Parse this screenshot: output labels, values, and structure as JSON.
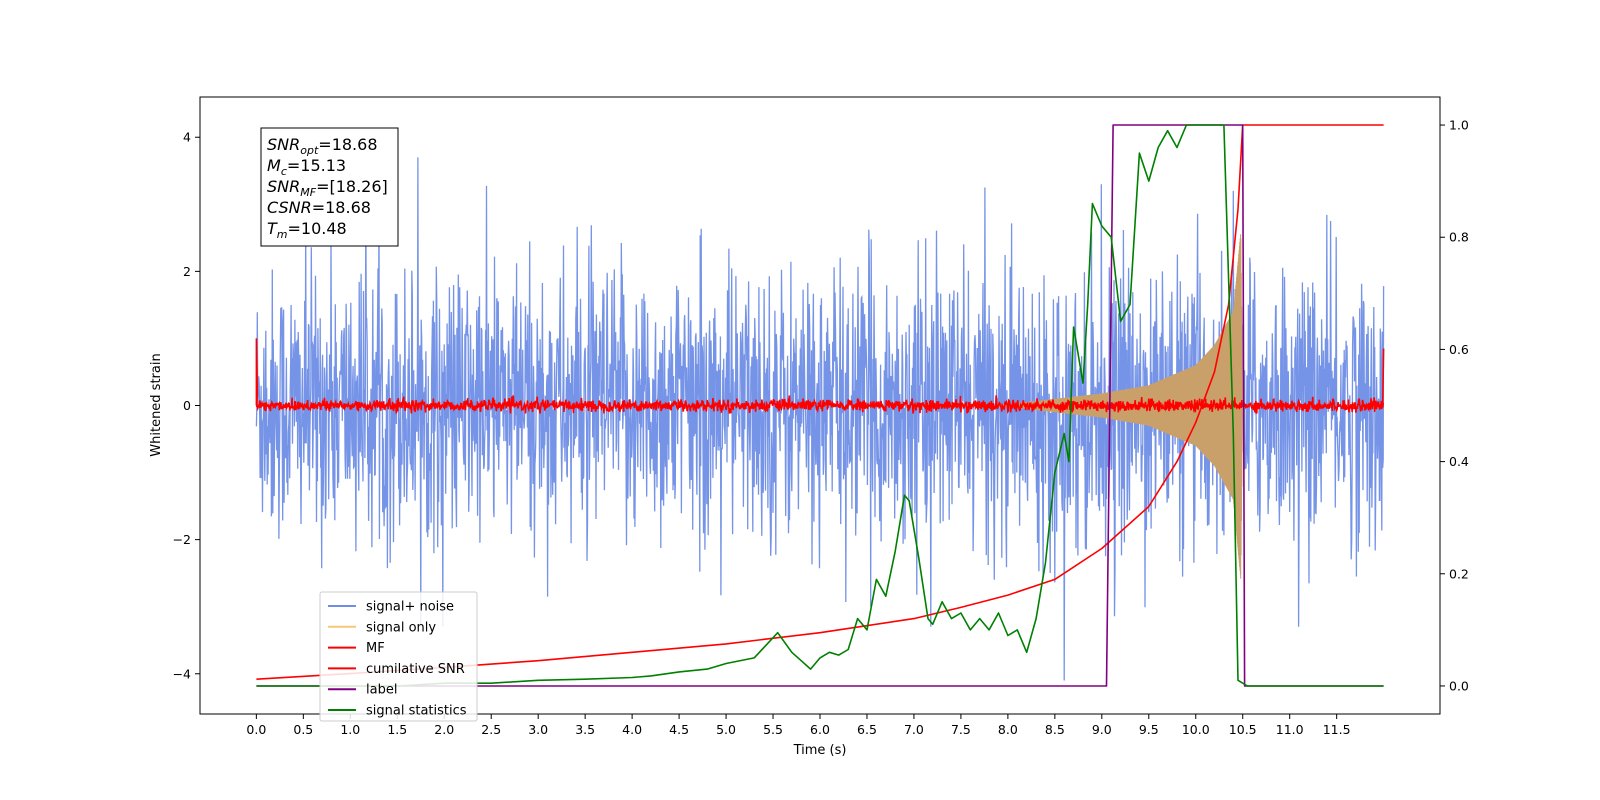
{
  "chart_data": {
    "type": "line",
    "xlabel": "Time (s)",
    "ylabel": "Whitened strain",
    "xlim": [
      -0.6,
      12.6
    ],
    "ylim_left": [
      -4.6,
      4.6
    ],
    "ylim_right": [
      -0.05,
      1.05
    ],
    "x_ticks": [
      0.0,
      0.5,
      1.0,
      1.5,
      2.0,
      2.5,
      3.0,
      3.5,
      4.0,
      4.5,
      5.0,
      5.5,
      6.0,
      6.5,
      7.0,
      7.5,
      8.0,
      8.5,
      9.0,
      9.5,
      10.0,
      10.5,
      11.0,
      11.5
    ],
    "x_tick_labels": [
      "0.0",
      "0.5",
      "1.0",
      "1.5",
      "2.0",
      "2.5",
      "3.0",
      "3.5",
      "4.0",
      "4.5",
      "5.0",
      "5.5",
      "6.0",
      "6.5",
      "7.0",
      "7.5",
      "8.0",
      "8.5",
      "9.0",
      "9.5",
      "10.0",
      "10.5",
      "11.0",
      "11.5"
    ],
    "y_ticks_left": [
      -4,
      -2,
      0,
      2,
      4
    ],
    "y_tick_labels_left": [
      "−4",
      "−2",
      "0",
      "2",
      "4"
    ],
    "y_ticks_right": [
      0.0,
      0.2,
      0.4,
      0.6,
      0.8,
      1.0
    ],
    "y_tick_labels_right": [
      "0.0",
      "0.2",
      "0.4",
      "0.6",
      "0.8",
      "1.0"
    ],
    "grid": false,
    "legend_position": "lower-left",
    "stats_box": [
      {
        "base": "SNR",
        "sub": "opt",
        "value": "=18.68"
      },
      {
        "base": "M",
        "sub": "c",
        "value": "=15.13"
      },
      {
        "base": "SNR",
        "sub": "MF",
        "value": "=[18.26]"
      },
      {
        "base": "CSNR",
        "sub": "",
        "value": "=18.68"
      },
      {
        "base": "T",
        "sub": "m",
        "value": "=10.48"
      }
    ],
    "series": [
      {
        "name": "signal+ noise",
        "color": "#6f8ee6",
        "axis": "left",
        "description_values": {
          "x_range": [
            0.0,
            12.0
          ],
          "typical_amplitude": 1.5,
          "max": 3.7,
          "min": -4.1
        }
      },
      {
        "name": "signal only",
        "color": "#f5c77a",
        "axis": "left",
        "envelope": {
          "x": [
            0.0,
            8.0,
            8.5,
            9.0,
            9.5,
            10.0,
            10.2,
            10.4,
            10.48,
            10.5
          ],
          "amplitude": [
            0.0,
            0.02,
            0.1,
            0.18,
            0.3,
            0.6,
            0.9,
            1.4,
            2.6,
            0.0
          ]
        }
      },
      {
        "name": "MF",
        "color": "#ff0000",
        "axis": "left",
        "description_values": {
          "x_range": [
            0.0,
            12.0
          ],
          "level": 0.0,
          "spread": 0.1,
          "start_spike": 1.0,
          "end_spike": 0.85
        }
      },
      {
        "name": "cumilative SNR",
        "color": "#ff0000",
        "axis": "right",
        "x": [
          0.0,
          1.0,
          2.0,
          3.0,
          4.0,
          5.0,
          6.0,
          7.0,
          7.5,
          8.0,
          8.5,
          9.0,
          9.5,
          9.8,
          10.0,
          10.2,
          10.35,
          10.45,
          10.5,
          12.0
        ],
        "y": [
          0.012,
          0.022,
          0.033,
          0.045,
          0.06,
          0.075,
          0.095,
          0.12,
          0.14,
          0.162,
          0.19,
          0.245,
          0.32,
          0.4,
          0.47,
          0.56,
          0.68,
          0.85,
          1.0,
          1.0
        ]
      },
      {
        "name": "label",
        "color": "#800080",
        "axis": "right",
        "x": [
          0.0,
          9.05,
          9.12,
          10.5,
          10.52,
          12.0
        ],
        "y": [
          0.0,
          0.0,
          1.0,
          1.0,
          0.0,
          0.0
        ]
      },
      {
        "name": "signal statistics",
        "color": "#008000",
        "axis": "right",
        "x": [
          0.0,
          0.5,
          1.0,
          1.5,
          2.0,
          2.5,
          3.0,
          3.5,
          4.0,
          4.2,
          4.5,
          4.8,
          5.0,
          5.3,
          5.55,
          5.7,
          5.8,
          5.9,
          6.0,
          6.1,
          6.2,
          6.3,
          6.4,
          6.5,
          6.6,
          6.7,
          6.8,
          6.9,
          6.95,
          7.05,
          7.15,
          7.2,
          7.3,
          7.4,
          7.5,
          7.6,
          7.7,
          7.8,
          7.9,
          8.0,
          8.1,
          8.2,
          8.3,
          8.4,
          8.5,
          8.6,
          8.65,
          8.7,
          8.8,
          8.85,
          8.9,
          9.0,
          9.1,
          9.2,
          9.3,
          9.4,
          9.5,
          9.6,
          9.7,
          9.8,
          9.9,
          10.0,
          10.1,
          10.2,
          10.3,
          10.4,
          10.45,
          10.55,
          10.65,
          11.0,
          12.0
        ],
        "y": [
          0.0,
          0.0,
          0.0,
          0.0,
          0.005,
          0.005,
          0.01,
          0.012,
          0.015,
          0.018,
          0.025,
          0.03,
          0.04,
          0.05,
          0.095,
          0.06,
          0.045,
          0.03,
          0.05,
          0.06,
          0.055,
          0.065,
          0.12,
          0.1,
          0.19,
          0.16,
          0.24,
          0.34,
          0.33,
          0.23,
          0.12,
          0.11,
          0.15,
          0.12,
          0.13,
          0.1,
          0.12,
          0.1,
          0.13,
          0.09,
          0.1,
          0.06,
          0.12,
          0.22,
          0.38,
          0.45,
          0.4,
          0.64,
          0.54,
          0.68,
          0.86,
          0.82,
          0.8,
          0.65,
          0.68,
          0.95,
          0.9,
          0.96,
          0.99,
          0.96,
          1.0,
          1.0,
          1.0,
          1.0,
          1.0,
          0.45,
          0.01,
          0.0,
          0.0,
          0.0,
          0.0
        ]
      }
    ]
  }
}
